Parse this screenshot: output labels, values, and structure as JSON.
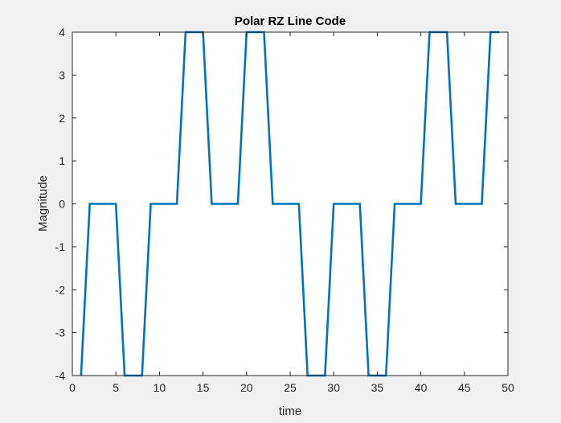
{
  "chart_data": {
    "type": "line",
    "title": "Polar RZ Line Code",
    "xlabel": "time",
    "ylabel": "Magnitude",
    "xlim": [
      0,
      50
    ],
    "ylim": [
      -4,
      4
    ],
    "xticks": [
      0,
      5,
      10,
      15,
      20,
      25,
      30,
      35,
      40,
      45,
      50
    ],
    "yticks": [
      -4,
      -3,
      -2,
      -1,
      0,
      1,
      2,
      3,
      4
    ],
    "grid": false,
    "series": [
      {
        "color": "#0072bd",
        "x": [
          1,
          2,
          3,
          4,
          5,
          6,
          7,
          8,
          9,
          10,
          11,
          12,
          13,
          14,
          15,
          16,
          17,
          18,
          19,
          20,
          21,
          22,
          23,
          24,
          25,
          26,
          27,
          28,
          29,
          30,
          31,
          32,
          33,
          34,
          35,
          36,
          37,
          38,
          39,
          40,
          41,
          42,
          43,
          44,
          45,
          46,
          47,
          48,
          49
        ],
        "y": [
          -4,
          0,
          0,
          0,
          0,
          -4,
          -4,
          -4,
          0,
          0,
          0,
          0,
          4,
          4,
          4,
          0,
          0,
          0,
          0,
          4,
          4,
          4,
          0,
          0,
          0,
          0,
          -4,
          -4,
          -4,
          0,
          0,
          0,
          0,
          -4,
          -4,
          -4,
          0,
          0,
          0,
          0,
          4,
          4,
          4,
          0,
          0,
          0,
          0,
          4,
          4
        ]
      }
    ]
  }
}
